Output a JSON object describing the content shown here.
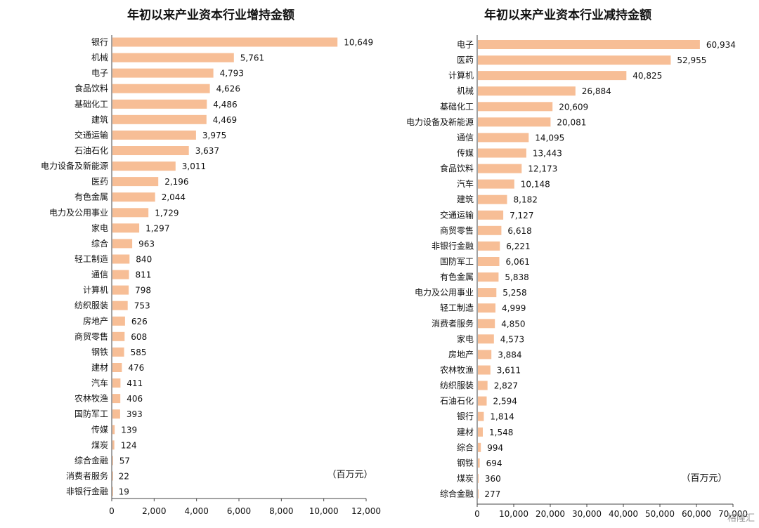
{
  "colors": {
    "bar": "#F7BE96",
    "axis": "#444444"
  },
  "watermark": "格隆汇",
  "chart_data": [
    {
      "type": "bar",
      "orientation": "horizontal",
      "title": "年初以来产业资本行业增持金额",
      "unit_label": "（百万元）",
      "categories": [
        "银行",
        "机械",
        "电子",
        "食品饮料",
        "基础化工",
        "建筑",
        "交通运输",
        "石油石化",
        "电力设备及新能源",
        "医药",
        "有色金属",
        "电力及公用事业",
        "家电",
        "综合",
        "轻工制造",
        "通信",
        "计算机",
        "纺织服装",
        "房地产",
        "商贸零售",
        "钢铁",
        "建材",
        "汽车",
        "农林牧渔",
        "国防军工",
        "传媒",
        "煤炭",
        "综合金融",
        "消费者服务",
        "非银行金融"
      ],
      "values": [
        10649,
        5761,
        4793,
        4626,
        4486,
        4469,
        3975,
        3637,
        3011,
        2196,
        2044,
        1729,
        1297,
        963,
        840,
        811,
        798,
        753,
        626,
        608,
        585,
        476,
        411,
        406,
        393,
        139,
        124,
        57,
        22,
        19
      ],
      "value_labels": [
        "10,649",
        "5,761",
        "4,793",
        "4,626",
        "4,486",
        "4,469",
        "3,975",
        "3,637",
        "3,011",
        "2,196",
        "2,044",
        "1,729",
        "1,297",
        "963",
        "840",
        "811",
        "798",
        "753",
        "626",
        "608",
        "585",
        "476",
        "411",
        "406",
        "393",
        "139",
        "124",
        "57",
        "22",
        "19"
      ],
      "xlim": [
        0,
        12000
      ],
      "ticks": [
        "0",
        "2,000",
        "4,000",
        "6,000",
        "8,000",
        "10,000",
        "12,000"
      ],
      "grid": false
    },
    {
      "type": "bar",
      "orientation": "horizontal",
      "title": "年初以来产业资本行业减持金额",
      "unit_label": "（百万元）",
      "categories": [
        "电子",
        "医药",
        "计算机",
        "机械",
        "基础化工",
        "电力设备及新能源",
        "通信",
        "传媒",
        "食品饮料",
        "汽车",
        "建筑",
        "交通运输",
        "商贸零售",
        "非银行金融",
        "国防军工",
        "有色金属",
        "电力及公用事业",
        "轻工制造",
        "消费者服务",
        "家电",
        "房地产",
        "农林牧渔",
        "纺织服装",
        "石油石化",
        "银行",
        "建材",
        "综合",
        "钢铁",
        "煤炭",
        "综合金融"
      ],
      "values": [
        60934,
        52955,
        40825,
        26884,
        20609,
        20081,
        14095,
        13443,
        12173,
        10148,
        8182,
        7127,
        6618,
        6221,
        6061,
        5838,
        5258,
        4999,
        4850,
        4573,
        3884,
        3611,
        2827,
        2594,
        1814,
        1548,
        994,
        694,
        360,
        277
      ],
      "value_labels": [
        "60,934",
        "52,955",
        "40,825",
        "26,884",
        "20,609",
        "20,081",
        "14,095",
        "13,443",
        "12,173",
        "10,148",
        "8,182",
        "7,127",
        "6,618",
        "6,221",
        "6,061",
        "5,838",
        "5,258",
        "4,999",
        "4,850",
        "4,573",
        "3,884",
        "3,611",
        "2,827",
        "2,594",
        "1,814",
        "1,548",
        "994",
        "694",
        "360",
        "277"
      ],
      "xlim": [
        0,
        70000
      ],
      "ticks": [
        "0",
        "10,000",
        "20,000",
        "30,000",
        "40,000",
        "50,000",
        "60,000",
        "70,000"
      ],
      "grid": false
    }
  ]
}
